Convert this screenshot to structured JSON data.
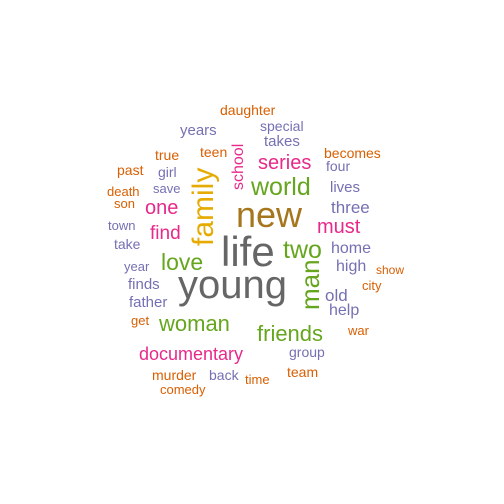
{
  "palette": {
    "gray": "#666666",
    "brown": "#A6761D",
    "gold": "#E6AB02",
    "green": "#66A61E",
    "magenta": "#E7298A",
    "purple": "#7570B3",
    "orange": "#D95F02"
  },
  "words": [
    {
      "text": "life",
      "color": "gray"
    },
    {
      "text": "young",
      "color": "gray"
    },
    {
      "text": "new",
      "color": "brown"
    },
    {
      "text": "family",
      "color": "gold"
    },
    {
      "text": "world",
      "color": "green"
    },
    {
      "text": "two",
      "color": "green"
    },
    {
      "text": "man",
      "color": "green"
    },
    {
      "text": "love",
      "color": "green"
    },
    {
      "text": "woman",
      "color": "green"
    },
    {
      "text": "friends",
      "color": "green"
    },
    {
      "text": "series",
      "color": "magenta"
    },
    {
      "text": "one",
      "color": "magenta"
    },
    {
      "text": "find",
      "color": "magenta"
    },
    {
      "text": "must",
      "color": "magenta"
    },
    {
      "text": "documentary",
      "color": "magenta"
    },
    {
      "text": "school",
      "color": "magenta"
    },
    {
      "text": "three",
      "color": "purple"
    },
    {
      "text": "lives",
      "color": "purple"
    },
    {
      "text": "home",
      "color": "purple"
    },
    {
      "text": "high",
      "color": "purple"
    },
    {
      "text": "old",
      "color": "purple"
    },
    {
      "text": "help",
      "color": "purple"
    },
    {
      "text": "group",
      "color": "purple"
    },
    {
      "text": "years",
      "color": "purple"
    },
    {
      "text": "takes",
      "color": "purple"
    },
    {
      "text": "special",
      "color": "purple"
    },
    {
      "text": "four",
      "color": "purple"
    },
    {
      "text": "girl",
      "color": "purple"
    },
    {
      "text": "save",
      "color": "purple"
    },
    {
      "text": "town",
      "color": "purple"
    },
    {
      "text": "take",
      "color": "purple"
    },
    {
      "text": "year",
      "color": "purple"
    },
    {
      "text": "finds",
      "color": "purple"
    },
    {
      "text": "father",
      "color": "purple"
    },
    {
      "text": "back",
      "color": "purple"
    },
    {
      "text": "daughter",
      "color": "orange"
    },
    {
      "text": "teen",
      "color": "orange"
    },
    {
      "text": "true",
      "color": "orange"
    },
    {
      "text": "past",
      "color": "orange"
    },
    {
      "text": "death",
      "color": "orange"
    },
    {
      "text": "son",
      "color": "orange"
    },
    {
      "text": "becomes",
      "color": "orange"
    },
    {
      "text": "show",
      "color": "orange"
    },
    {
      "text": "city",
      "color": "orange"
    },
    {
      "text": "war",
      "color": "orange"
    },
    {
      "text": "get",
      "color": "orange"
    },
    {
      "text": "murder",
      "color": "orange"
    },
    {
      "text": "comedy",
      "color": "orange"
    },
    {
      "text": "time",
      "color": "orange"
    },
    {
      "text": "team",
      "color": "orange"
    }
  ]
}
